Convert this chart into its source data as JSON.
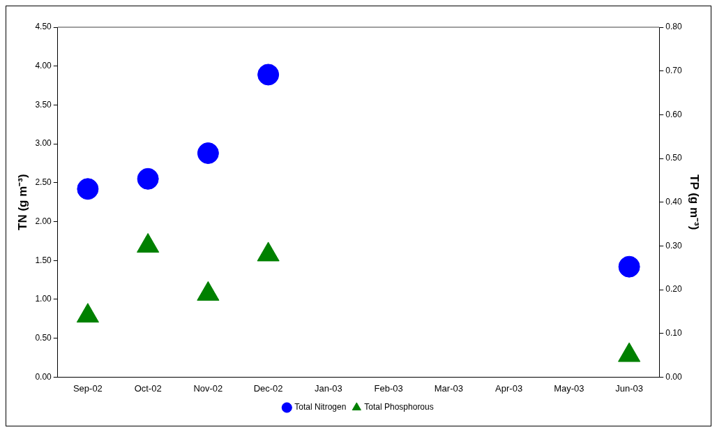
{
  "chart_data": {
    "type": "scatter",
    "ylabel": "TN (g m⁻³)",
    "y2label": "TP (g m⁻³)",
    "categories": [
      "Sep-02",
      "Oct-02",
      "Nov-02",
      "Dec-02",
      "Jan-03",
      "Feb-03",
      "Mar-03",
      "Apr-03",
      "May-03",
      "Jun-03"
    ],
    "series": [
      {
        "name": "Total Nitrogen",
        "color": "#0000ff",
        "marker": "circle",
        "values": [
          2.42,
          2.55,
          2.88,
          3.89,
          null,
          null,
          null,
          null,
          null,
          1.42
        ]
      },
      {
        "name": "Total Phosphorous",
        "color": "#008000",
        "marker": "triangle",
        "axis": "y2",
        "values": [
          0.14,
          0.3,
          0.19,
          0.28,
          null,
          null,
          null,
          null,
          null,
          0.05
        ]
      }
    ],
    "ylim": [
      0,
      4.5
    ],
    "yticks": [
      {
        "value": 0,
        "label": "0.00"
      },
      {
        "value": 0.5,
        "label": "0.50"
      },
      {
        "value": 1,
        "label": "1.00"
      },
      {
        "value": 1.5,
        "label": "1.50"
      },
      {
        "value": 2,
        "label": "2.00"
      },
      {
        "value": 2.5,
        "label": "2.50"
      },
      {
        "value": 3,
        "label": "3.00"
      },
      {
        "value": 3.5,
        "label": "3.50"
      },
      {
        "value": 4,
        "label": "4.00"
      },
      {
        "value": 4.5,
        "label": "4.50"
      }
    ],
    "y2lim": [
      0,
      0.8
    ],
    "y2ticks": [
      {
        "value": 0,
        "label": "0.00"
      },
      {
        "value": 0.1,
        "label": "0.10"
      },
      {
        "value": 0.2,
        "label": "0.20"
      },
      {
        "value": 0.3,
        "label": "0.30"
      },
      {
        "value": 0.4,
        "label": "0.40"
      },
      {
        "value": 0.5,
        "label": "0.50"
      },
      {
        "value": 0.6,
        "label": "0.60"
      },
      {
        "value": 0.7,
        "label": "0.70"
      },
      {
        "value": 0.8,
        "label": "0.80"
      }
    ],
    "grid": false,
    "legend": "bottom"
  }
}
